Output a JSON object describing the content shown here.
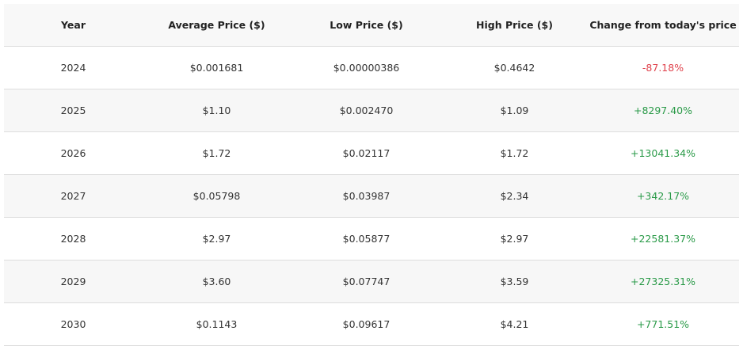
{
  "table": {
    "headers": [
      "Year",
      "Average Price ($)",
      "Low Price ($)",
      "High Price ($)",
      "Change from today's price"
    ],
    "rows": [
      [
        "2024",
        "$0.001681",
        "$0.00000386",
        "$0.4642",
        "-87.18%"
      ],
      [
        "2025",
        "$1.10",
        "$0.002470",
        "$1.09",
        "+8297.40%"
      ],
      [
        "2026",
        "$1.72",
        "$0.02117",
        "$1.72",
        "+13041.34%"
      ],
      [
        "2027",
        "$0.05798",
        "$0.03987",
        "$2.34",
        "+342.17%"
      ],
      [
        "2028",
        "$2.97",
        "$0.05877",
        "$2.97",
        "+22581.37%"
      ],
      [
        "2029",
        "$3.60",
        "$0.07747",
        "$3.59",
        "+27325.31%"
      ],
      [
        "2030",
        "$0.1143",
        "$0.09617",
        "$4.21",
        "+771.51%"
      ]
    ],
    "positive_color": "#2a9a48",
    "negative_color": "#e0434d"
  }
}
